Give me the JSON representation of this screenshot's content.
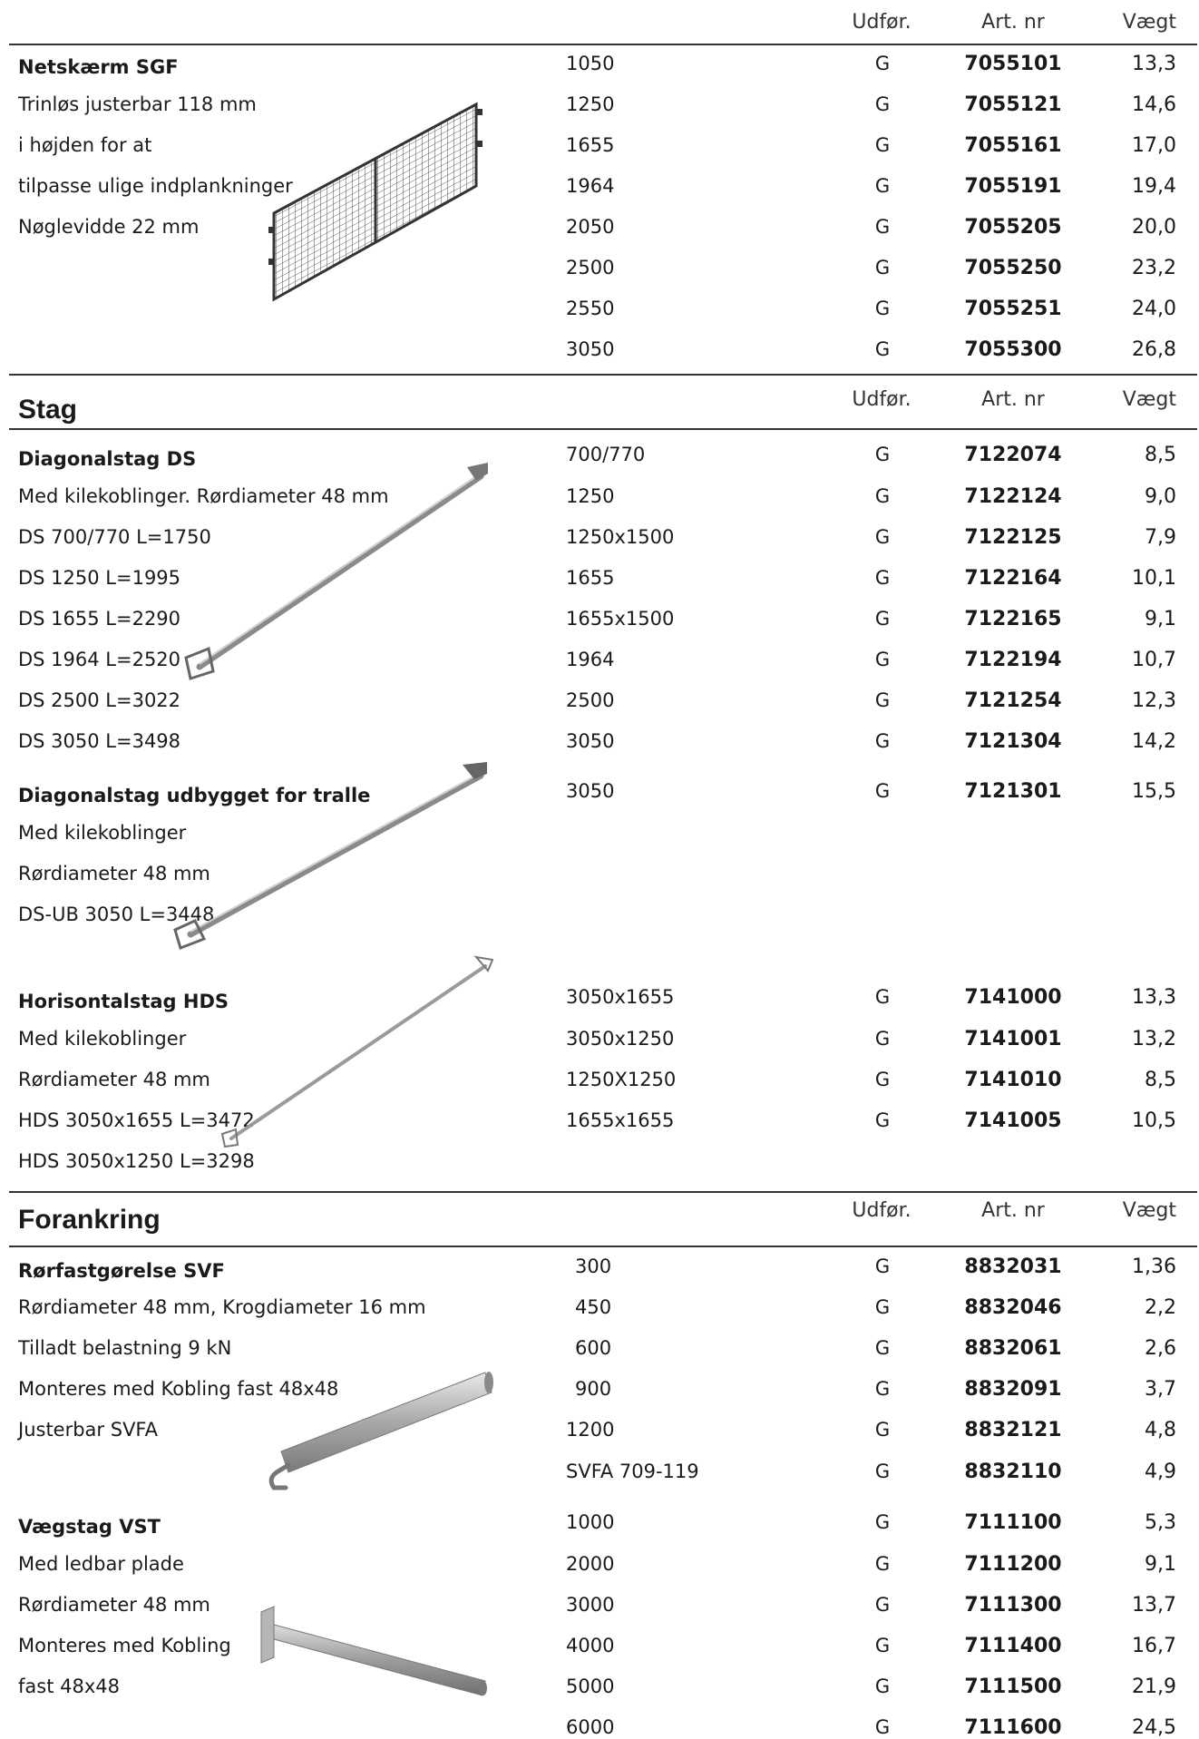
{
  "columns": {
    "udfor": "Udfør.",
    "artnr": "Art. nr",
    "vaegt": "Vægt"
  },
  "netskaerm": {
    "title": "Netskærm SGF",
    "lines": [
      "Trinløs justerbar 118 mm",
      "i højden for at",
      "tilpasse ulige indplankninger",
      "Nøglevidde 22 mm"
    ],
    "rows": [
      {
        "dim": "1050",
        "g": "G",
        "art": "7055101",
        "w": "13,3"
      },
      {
        "dim": "1250",
        "g": "G",
        "art": "7055121",
        "w": "14,6"
      },
      {
        "dim": "1655",
        "g": "G",
        "art": "7055161",
        "w": "17,0"
      },
      {
        "dim": "1964",
        "g": "G",
        "art": "7055191",
        "w": "19,4"
      },
      {
        "dim": "2050",
        "g": "G",
        "art": "7055205",
        "w": "20,0"
      },
      {
        "dim": "2500",
        "g": "G",
        "art": "7055250",
        "w": "23,2"
      },
      {
        "dim": "2550",
        "g": "G",
        "art": "7055251",
        "w": "24,0"
      },
      {
        "dim": "3050",
        "g": "G",
        "art": "7055300",
        "w": "26,8"
      }
    ]
  },
  "stag": {
    "section_title": "Stag",
    "diagonal": {
      "title": "Diagonalstag DS",
      "lines": [
        "Med kilekoblinger. Rørdiameter 48 mm",
        "DS 700/770 L=1750",
        "DS 1250 L=1995",
        "DS 1655 L=2290",
        "DS 1964 L=2520",
        "DS 2500 L=3022",
        "DS 3050 L=3498"
      ],
      "rows": [
        {
          "dim": "700/770",
          "g": "G",
          "art": "7122074",
          "w": "8,5"
        },
        {
          "dim": "1250",
          "g": "G",
          "art": "7122124",
          "w": "9,0"
        },
        {
          "dim": "1250x1500",
          "g": "G",
          "art": "7122125",
          "w": "7,9"
        },
        {
          "dim": "1655",
          "g": "G",
          "art": "7122164",
          "w": "10,1"
        },
        {
          "dim": "1655x1500",
          "g": "G",
          "art": "7122165",
          "w": "9,1"
        },
        {
          "dim": "1964",
          "g": "G",
          "art": "7122194",
          "w": "10,7"
        },
        {
          "dim": "2500",
          "g": "G",
          "art": "7121254",
          "w": "12,3"
        },
        {
          "dim": "3050",
          "g": "G",
          "art": "7121304",
          "w": "14,2"
        }
      ]
    },
    "udbygget": {
      "title": "Diagonalstag udbygget for tralle",
      "lines": [
        "Med kilekoblinger",
        "Rørdiameter 48 mm",
        "DS-UB 3050 L=3448"
      ],
      "rows": [
        {
          "dim": "3050",
          "g": "G",
          "art": "7121301",
          "w": "15,5"
        }
      ]
    },
    "horisontal": {
      "title": "Horisontalstag HDS",
      "lines": [
        "Med kilekoblinger",
        "Rørdiameter 48 mm",
        "HDS 3050x1655 L=3472",
        "HDS 3050x1250 L=3298"
      ],
      "rows": [
        {
          "dim": "3050x1655",
          "g": "G",
          "art": "7141000",
          "w": "13,3"
        },
        {
          "dim": "3050x1250",
          "g": "G",
          "art": "7141001",
          "w": "13,2"
        },
        {
          "dim": "1250X1250",
          "g": "G",
          "art": "7141010",
          "w": "8,5"
        },
        {
          "dim": "1655x1655",
          "g": "G",
          "art": "7141005",
          "w": "10,5"
        }
      ]
    }
  },
  "forankring": {
    "section_title": "Forankring",
    "svf": {
      "title": "Rørfastgørelse SVF",
      "lines": [
        "Rørdiameter 48 mm, Krogdiameter 16 mm",
        "Tilladt belastning 9 kN",
        "Monteres med Kobling fast 48x48",
        "Justerbar SVFA"
      ],
      "rows": [
        {
          "dim": "300",
          "g": "G",
          "art": "8832031",
          "w": "1,36"
        },
        {
          "dim": "450",
          "g": "G",
          "art": "8832046",
          "w": "2,2"
        },
        {
          "dim": "600",
          "g": "G",
          "art": "8832061",
          "w": "2,6"
        },
        {
          "dim": "900",
          "g": "G",
          "art": "8832091",
          "w": "3,7"
        },
        {
          "dim": "1200",
          "g": "G",
          "art": "8832121",
          "w": "4,8"
        },
        {
          "dim": "SVFA 709-119",
          "g": "G",
          "art": "8832110",
          "w": "4,9"
        }
      ]
    },
    "vst": {
      "title": "Vægstag VST",
      "lines": [
        "Med ledbar plade",
        "Rørdiameter 48 mm",
        "Monteres med Kobling",
        "fast 48x48"
      ],
      "rows": [
        {
          "dim": "1000",
          "g": "G",
          "art": "7111100",
          "w": "5,3"
        },
        {
          "dim": "2000",
          "g": "G",
          "art": "7111200",
          "w": "9,1"
        },
        {
          "dim": "3000",
          "g": "G",
          "art": "7111300",
          "w": "13,7"
        },
        {
          "dim": "4000",
          "g": "G",
          "art": "7111400",
          "w": "16,7"
        },
        {
          "dim": "5000",
          "g": "G",
          "art": "7111500",
          "w": "21,9"
        },
        {
          "dim": "6000",
          "g": "G",
          "art": "7111600",
          "w": "24,5"
        }
      ]
    }
  }
}
